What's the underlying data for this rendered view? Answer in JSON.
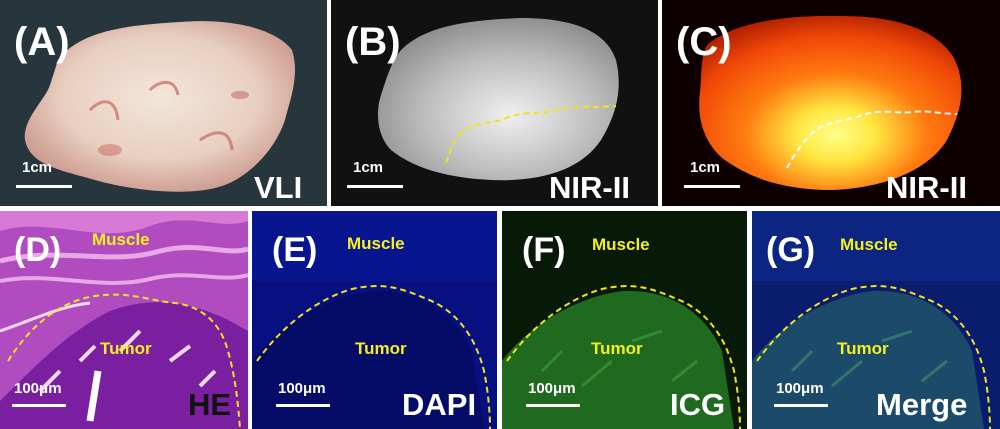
{
  "colors": {
    "label": "#ffffff",
    "annotation": "#f5ef1e",
    "boundary": "#f2e21a"
  },
  "panels": {
    "A": {
      "letter": "(A)",
      "scale": "1cm",
      "modality": "VLI"
    },
    "B": {
      "letter": "(B)",
      "scale": "1cm",
      "modality": "NIR-II"
    },
    "C": {
      "letter": "(C)",
      "scale": "1cm",
      "modality": "NIR-II"
    },
    "D": {
      "letter": "(D)",
      "scale": "100μm",
      "modality": "HE",
      "top_region": "Muscle",
      "bottom_region": "Tumor"
    },
    "E": {
      "letter": "(E)",
      "scale": "100μm",
      "modality": "DAPI",
      "top_region": "Muscle",
      "bottom_region": "Tumor"
    },
    "F": {
      "letter": "(F)",
      "scale": "100μm",
      "modality": "ICG",
      "top_region": "Muscle",
      "bottom_region": "Tumor"
    },
    "G": {
      "letter": "(G)",
      "scale": "100μm",
      "modality": "Merge",
      "top_region": "Muscle",
      "bottom_region": "Tumor"
    }
  }
}
